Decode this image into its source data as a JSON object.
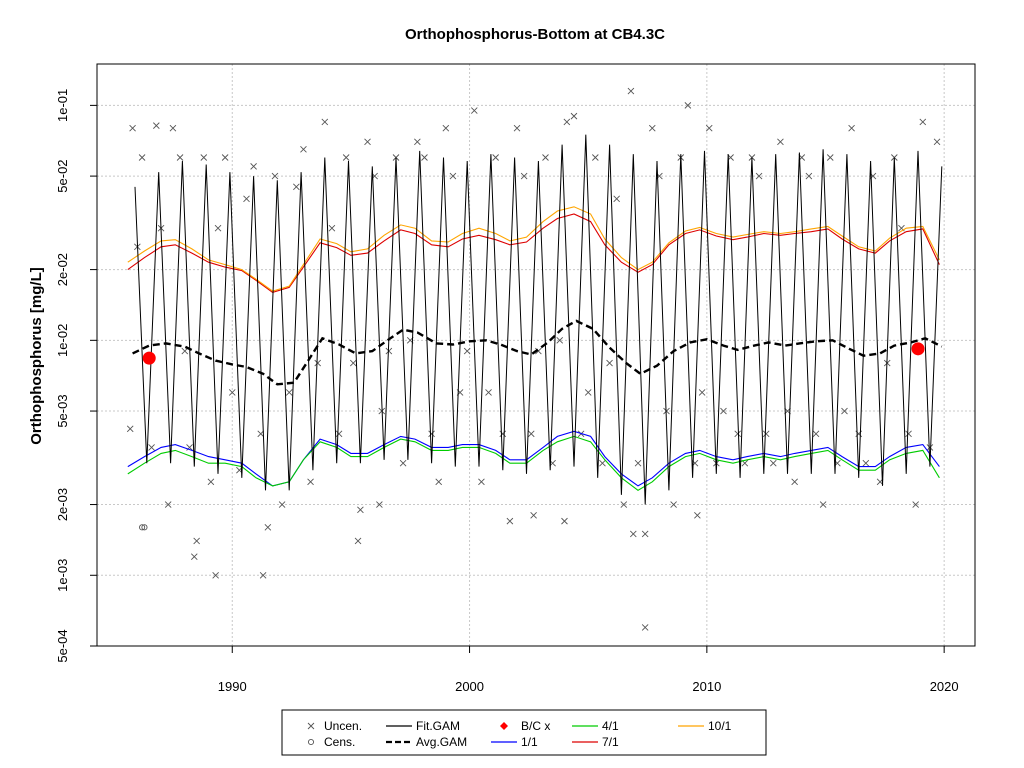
{
  "chart_data": {
    "type": "line",
    "title": "Orthophosphorus-Bottom at CB4.3C",
    "xlabel": "",
    "ylabel": "Orthophosphorus [mg/L]",
    "y_scale": "log",
    "xlim": [
      1984.3,
      2021.3
    ],
    "ylim": [
      0.0005,
      0.15
    ],
    "grid": true,
    "x_ticks": [
      1990,
      2000,
      2010,
      2020
    ],
    "x_tick_labels": [
      "1990",
      "2000",
      "2010",
      "2020"
    ],
    "y_ticks": [
      0.0005,
      0.001,
      0.002,
      0.005,
      0.01,
      0.02,
      0.05,
      0.1
    ],
    "y_tick_labels": [
      "5e-04",
      "1e-03",
      "2e-03",
      "5e-03",
      "1e-02",
      "2e-02",
      "5e-02",
      "1e-01"
    ],
    "legend_position": "bottom",
    "legend": [
      {
        "label": "Uncen.",
        "symbol": "x",
        "color": "#555555"
      },
      {
        "label": "Cens.",
        "symbol": "circle",
        "color": "#555555"
      },
      {
        "label": "Fit.GAM",
        "symbol": "line",
        "color": "#000000"
      },
      {
        "label": "Avg.GAM",
        "symbol": "dashed",
        "color": "#000000"
      },
      {
        "label": "B/C x",
        "symbol": "diamond",
        "color": "#ff0000"
      },
      {
        "label": "1/1",
        "symbol": "line",
        "color": "#0000ff"
      },
      {
        "label": "4/1",
        "symbol": "line",
        "color": "#00cc00"
      },
      {
        "label": "7/1",
        "symbol": "line",
        "color": "#dd0000"
      },
      {
        "label": "10/1",
        "symbol": "line",
        "color": "#ffa500"
      }
    ],
    "series": [
      {
        "name": "Avg.GAM",
        "color": "#000000",
        "x": [
          1985.8,
          1986.5,
          1987.2,
          1988.0,
          1988.6,
          1989.3,
          1990.0,
          1990.6,
          1991.3,
          1991.9,
          1992.6,
          1993.2,
          1993.8,
          1994.5,
          1995.2,
          1995.9,
          1996.6,
          1997.2,
          1997.8,
          1998.6,
          1999.3,
          2000.0,
          2000.7,
          2001.3,
          2002.0,
          2002.6,
          2003.3,
          2003.9,
          2004.5,
          2005.2,
          2005.9,
          2006.6,
          2007.2,
          2007.9,
          2008.6,
          2009.3,
          2010.0,
          2010.7,
          2011.3,
          2012.0,
          2012.6,
          2013.3,
          2013.9,
          2014.6,
          2015.3,
          2016.0,
          2016.6,
          2017.3,
          2017.9,
          2018.6,
          2019.2,
          2019.9
        ],
        "values": [
          0.0088,
          0.0095,
          0.0097,
          0.0094,
          0.0088,
          0.0082,
          0.0079,
          0.0077,
          0.0072,
          0.0065,
          0.0066,
          0.0082,
          0.0102,
          0.0096,
          0.0088,
          0.009,
          0.0101,
          0.0111,
          0.0108,
          0.0097,
          0.0096,
          0.0099,
          0.01,
          0.0096,
          0.009,
          0.0087,
          0.0098,
          0.0112,
          0.0121,
          0.0112,
          0.0093,
          0.008,
          0.0072,
          0.0078,
          0.009,
          0.0098,
          0.0101,
          0.0095,
          0.0091,
          0.0095,
          0.0098,
          0.0095,
          0.0097,
          0.0099,
          0.01,
          0.0092,
          0.0086,
          0.0088,
          0.0095,
          0.0098,
          0.0102,
          0.0094
        ]
      },
      {
        "name": "1/1",
        "color": "#0000ff",
        "x": [
          1985.6,
          1986.3,
          1987.0,
          1987.6,
          1988.3,
          1989.0,
          1989.7,
          1990.4,
          1991.0,
          1991.7,
          1992.4,
          1993.0,
          1993.7,
          1994.4,
          1995.0,
          1995.7,
          1996.4,
          1997.1,
          1997.7,
          1998.4,
          1999.1,
          1999.7,
          2000.4,
          2001.1,
          2001.7,
          2002.4,
          2003.1,
          2003.7,
          2004.4,
          2005.1,
          2005.7,
          2006.4,
          2007.1,
          2007.7,
          2008.4,
          2009.1,
          2009.7,
          2010.4,
          2011.1,
          2011.7,
          2012.4,
          2013.1,
          2013.7,
          2014.4,
          2015.1,
          2015.7,
          2016.4,
          2017.1,
          2017.7,
          2018.4,
          2019.1,
          2019.8
        ],
        "values": [
          0.0029,
          0.0032,
          0.0035,
          0.0036,
          0.0034,
          0.0032,
          0.0031,
          0.003,
          0.0027,
          0.0024,
          0.0025,
          0.0031,
          0.0038,
          0.0036,
          0.0033,
          0.0033,
          0.0036,
          0.0039,
          0.0038,
          0.0035,
          0.0035,
          0.0036,
          0.0036,
          0.0034,
          0.0031,
          0.0031,
          0.0035,
          0.0039,
          0.0041,
          0.0039,
          0.0032,
          0.0027,
          0.0024,
          0.0026,
          0.003,
          0.0033,
          0.0034,
          0.0032,
          0.0031,
          0.0032,
          0.0033,
          0.0032,
          0.0033,
          0.0034,
          0.0035,
          0.0032,
          0.0029,
          0.0029,
          0.0032,
          0.0035,
          0.0036,
          0.0029
        ]
      },
      {
        "name": "4/1",
        "color": "#00cc00",
        "x": [
          1985.6,
          1986.3,
          1987.0,
          1987.6,
          1988.3,
          1989.0,
          1989.7,
          1990.4,
          1991.0,
          1991.7,
          1992.4,
          1993.0,
          1993.7,
          1994.4,
          1995.0,
          1995.7,
          1996.4,
          1997.1,
          1997.7,
          1998.4,
          1999.1,
          1999.7,
          2000.4,
          2001.1,
          2001.7,
          2002.4,
          2003.1,
          2003.7,
          2004.4,
          2005.1,
          2005.7,
          2006.4,
          2007.1,
          2007.7,
          2008.4,
          2009.1,
          2009.7,
          2010.4,
          2011.1,
          2011.7,
          2012.4,
          2013.1,
          2013.7,
          2014.4,
          2015.1,
          2015.7,
          2016.4,
          2017.1,
          2017.7,
          2018.4,
          2019.1,
          2019.8
        ],
        "values": [
          0.0027,
          0.003,
          0.0033,
          0.0034,
          0.0032,
          0.003,
          0.003,
          0.0029,
          0.0026,
          0.0024,
          0.0025,
          0.0031,
          0.0037,
          0.0035,
          0.0032,
          0.0032,
          0.0035,
          0.0038,
          0.0037,
          0.0034,
          0.0034,
          0.0035,
          0.0035,
          0.0033,
          0.003,
          0.003,
          0.0034,
          0.0037,
          0.0039,
          0.0037,
          0.0031,
          0.0026,
          0.0023,
          0.0025,
          0.0029,
          0.0032,
          0.0033,
          0.0031,
          0.003,
          0.0031,
          0.0032,
          0.0031,
          0.0032,
          0.0033,
          0.0034,
          0.0031,
          0.0028,
          0.0028,
          0.0031,
          0.0033,
          0.0034,
          0.0026
        ]
      },
      {
        "name": "7/1",
        "color": "#dd0000",
        "x": [
          1985.6,
          1986.3,
          1987.0,
          1987.6,
          1988.3,
          1989.0,
          1989.7,
          1990.4,
          1991.0,
          1991.7,
          1992.4,
          1993.0,
          1993.7,
          1994.4,
          1995.0,
          1995.7,
          1996.4,
          1997.1,
          1997.7,
          1998.4,
          1999.1,
          1999.7,
          2000.4,
          2001.1,
          2001.7,
          2002.4,
          2003.1,
          2003.7,
          2004.4,
          2005.1,
          2005.7,
          2006.4,
          2007.1,
          2007.7,
          2008.4,
          2009.1,
          2009.7,
          2010.4,
          2011.1,
          2011.7,
          2012.4,
          2013.1,
          2013.7,
          2014.4,
          2015.1,
          2015.7,
          2016.4,
          2017.1,
          2017.7,
          2018.4,
          2019.1,
          2019.8
        ],
        "values": [
          0.02,
          0.0225,
          0.025,
          0.0255,
          0.0235,
          0.0215,
          0.0205,
          0.0198,
          0.018,
          0.016,
          0.0168,
          0.0205,
          0.026,
          0.0248,
          0.023,
          0.0235,
          0.0265,
          0.0295,
          0.0285,
          0.0255,
          0.025,
          0.027,
          0.028,
          0.0268,
          0.0255,
          0.0262,
          0.03,
          0.033,
          0.0345,
          0.032,
          0.0255,
          0.0215,
          0.0195,
          0.021,
          0.0255,
          0.0285,
          0.0295,
          0.0278,
          0.0268,
          0.0275,
          0.0285,
          0.028,
          0.0285,
          0.029,
          0.0298,
          0.027,
          0.0245,
          0.0235,
          0.0265,
          0.029,
          0.0298,
          0.021
        ]
      },
      {
        "name": "10/1",
        "color": "#ffa500",
        "x": [
          1985.6,
          1986.3,
          1987.0,
          1987.6,
          1988.3,
          1989.0,
          1989.7,
          1990.4,
          1991.0,
          1991.7,
          1992.4,
          1993.0,
          1993.7,
          1994.4,
          1995.0,
          1995.7,
          1996.4,
          1997.1,
          1997.7,
          1998.4,
          1999.1,
          1999.7,
          2000.4,
          2001.1,
          2001.7,
          2002.4,
          2003.1,
          2003.7,
          2004.4,
          2005.1,
          2005.7,
          2006.4,
          2007.1,
          2007.7,
          2008.4,
          2009.1,
          2009.7,
          2010.4,
          2011.1,
          2011.7,
          2012.4,
          2013.1,
          2013.7,
          2014.4,
          2015.1,
          2015.7,
          2016.4,
          2017.1,
          2017.7,
          2018.4,
          2019.1,
          2019.8
        ],
        "values": [
          0.0215,
          0.024,
          0.0265,
          0.0268,
          0.0245,
          0.022,
          0.021,
          0.02,
          0.0182,
          0.0162,
          0.017,
          0.021,
          0.027,
          0.0258,
          0.0238,
          0.0245,
          0.028,
          0.031,
          0.03,
          0.0265,
          0.0262,
          0.0285,
          0.03,
          0.0285,
          0.0265,
          0.0275,
          0.032,
          0.0355,
          0.037,
          0.0345,
          0.027,
          0.0225,
          0.02,
          0.0215,
          0.026,
          0.0292,
          0.0302,
          0.0285,
          0.0275,
          0.0282,
          0.029,
          0.0285,
          0.029,
          0.0298,
          0.0305,
          0.0278,
          0.025,
          0.024,
          0.0272,
          0.03,
          0.0305,
          0.022
        ]
      },
      {
        "name": "Fit.GAM",
        "color": "#000000",
        "seasonal_peaks": {
          "x": [
            1985.9,
            1986.9,
            1987.9,
            1988.9,
            1989.9,
            1990.9,
            1991.9,
            1992.9,
            1993.9,
            1994.9,
            1995.9,
            1996.9,
            1997.9,
            1998.9,
            1999.9,
            2000.9,
            2001.9,
            2002.9,
            2003.9,
            2004.9,
            2005.9,
            2006.9,
            2007.9,
            2008.9,
            2009.9,
            2010.9,
            2011.9,
            2012.9,
            2013.9,
            2014.9,
            2015.9,
            2016.9,
            2017.9,
            2018.9,
            2019.9
          ],
          "values": [
            0.045,
            0.052,
            0.058,
            0.056,
            0.052,
            0.05,
            0.048,
            0.052,
            0.06,
            0.058,
            0.055,
            0.06,
            0.064,
            0.06,
            0.058,
            0.062,
            0.06,
            0.058,
            0.068,
            0.075,
            0.068,
            0.062,
            0.058,
            0.062,
            0.064,
            0.062,
            0.06,
            0.062,
            0.063,
            0.065,
            0.062,
            0.058,
            0.06,
            0.064,
            0.055
          ]
        },
        "seasonal_troughs": {
          "x": [
            1986.4,
            1987.4,
            1988.4,
            1989.4,
            1990.4,
            1991.4,
            1992.4,
            1993.4,
            1994.4,
            1995.4,
            1996.4,
            1997.4,
            1998.4,
            1999.4,
            2000.4,
            2001.4,
            2002.4,
            2003.4,
            2004.4,
            2005.4,
            2006.4,
            2007.4,
            2008.4,
            2009.4,
            2010.4,
            2011.4,
            2012.4,
            2013.4,
            2014.4,
            2015.4,
            2016.4,
            2017.4,
            2018.4,
            2019.4
          ],
          "values": [
            0.003,
            0.003,
            0.0029,
            0.0027,
            0.0026,
            0.0023,
            0.0023,
            0.0028,
            0.003,
            0.003,
            0.0031,
            0.0031,
            0.003,
            0.0029,
            0.0029,
            0.0028,
            0.0027,
            0.0028,
            0.0029,
            0.0026,
            0.0022,
            0.002,
            0.0023,
            0.0026,
            0.0027,
            0.0026,
            0.0027,
            0.0027,
            0.0027,
            0.0027,
            0.0026,
            0.0024,
            0.0027,
            0.0029
          ]
        }
      }
    ],
    "points_uncensored": {
      "x": [
        1985.7,
        1985.8,
        1986.0,
        1986.2,
        1986.6,
        1986.8,
        1987.0,
        1987.3,
        1987.5,
        1987.8,
        1988.0,
        1988.2,
        1988.5,
        1988.8,
        1989.1,
        1989.4,
        1989.7,
        1990.0,
        1990.3,
        1990.6,
        1990.9,
        1991.2,
        1991.5,
        1991.8,
        1992.1,
        1992.4,
        1992.7,
        1993.0,
        1993.3,
        1993.6,
        1993.9,
        1994.2,
        1994.5,
        1994.8,
        1995.1,
        1995.4,
        1995.7,
        1996.0,
        1996.3,
        1996.6,
        1996.9,
        1997.2,
        1997.5,
        1997.8,
        1998.1,
        1998.4,
        1998.7,
        1999.0,
        1999.3,
        1999.6,
        1999.9,
        2000.2,
        2000.5,
        2000.8,
        2001.1,
        2001.4,
        2001.7,
        2002.0,
        2002.3,
        2002.6,
        2002.9,
        2003.2,
        2003.5,
        2003.8,
        2004.1,
        2004.4,
        2004.7,
        2005.0,
        2005.3,
        2005.6,
        2005.9,
        2006.2,
        2006.5,
        2006.8,
        2007.1,
        2007.4,
        2007.7,
        2008.0,
        2008.3,
        2008.6,
        2008.9,
        2009.2,
        2009.5,
        2009.8,
        2010.1,
        2010.4,
        2010.7,
        2011.0,
        2011.3,
        2011.6,
        2011.9,
        2012.2,
        2012.5,
        2012.8,
        2013.1,
        2013.4,
        2013.7,
        2014.0,
        2014.3,
        2014.6,
        2014.9,
        2015.2,
        2015.5,
        2015.8,
        2016.1,
        2016.4,
        2016.7,
        2017.0,
        2017.3,
        2017.6,
        2017.9,
        2018.2,
        2018.5,
        2018.8,
        2019.1,
        2019.4,
        2019.7,
        1988.4,
        1989.3,
        1991.3,
        1995.3,
        2006.9,
        2007.4,
        2004.0,
        2009.6,
        1996.2,
        2002.7
      ],
      "values": [
        0.0042,
        0.08,
        0.025,
        0.06,
        0.0035,
        0.082,
        0.03,
        0.002,
        0.08,
        0.06,
        0.009,
        0.0035,
        0.0014,
        0.06,
        0.0025,
        0.03,
        0.06,
        0.006,
        0.0028,
        0.04,
        0.055,
        0.004,
        0.0016,
        0.05,
        0.002,
        0.006,
        0.045,
        0.065,
        0.0025,
        0.008,
        0.085,
        0.03,
        0.004,
        0.06,
        0.008,
        0.0019,
        0.07,
        0.05,
        0.005,
        0.009,
        0.06,
        0.003,
        0.01,
        0.07,
        0.06,
        0.004,
        0.0025,
        0.08,
        0.05,
        0.006,
        0.009,
        0.095,
        0.0025,
        0.006,
        0.06,
        0.004,
        0.0017,
        0.08,
        0.05,
        0.004,
        0.009,
        0.06,
        0.003,
        0.01,
        0.085,
        0.09,
        0.004,
        0.006,
        0.06,
        0.003,
        0.008,
        0.04,
        0.002,
        0.115,
        0.003,
        0.0015,
        0.08,
        0.05,
        0.005,
        0.002,
        0.06,
        0.1,
        0.003,
        0.006,
        0.08,
        0.003,
        0.005,
        0.06,
        0.004,
        0.003,
        0.06,
        0.05,
        0.004,
        0.003,
        0.07,
        0.005,
        0.0025,
        0.06,
        0.05,
        0.004,
        0.002,
        0.06,
        0.003,
        0.005,
        0.08,
        0.004,
        0.003,
        0.05,
        0.0025,
        0.008,
        0.06,
        0.03,
        0.004,
        0.002,
        0.085,
        0.0035,
        0.07,
        0.0012,
        0.001,
        0.001,
        0.0014,
        0.0015,
        0.0006,
        0.0017,
        0.0018,
        0.002,
        0.0018
      ]
    },
    "points_censored": {
      "x": [
        1986.2,
        1986.3
      ],
      "values": [
        0.0016,
        0.0016
      ]
    },
    "bc_points": {
      "x": [
        1986.5,
        2018.9
      ],
      "values": [
        0.0084,
        0.0092
      ],
      "color": "#ff0000"
    }
  }
}
